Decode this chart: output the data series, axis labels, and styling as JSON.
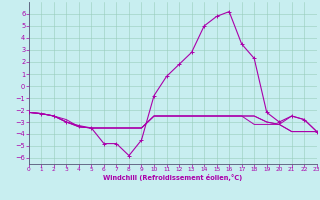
{
  "xlabel": "Windchill (Refroidissement éolien,°C)",
  "xlim": [
    0,
    23
  ],
  "ylim": [
    -6.5,
    7
  ],
  "yticks": [
    -6,
    -5,
    -4,
    -3,
    -2,
    -1,
    0,
    1,
    2,
    3,
    4,
    5,
    6
  ],
  "xticks": [
    0,
    1,
    2,
    3,
    4,
    5,
    6,
    7,
    8,
    9,
    10,
    11,
    12,
    13,
    14,
    15,
    16,
    17,
    18,
    19,
    20,
    21,
    22,
    23
  ],
  "bg_color": "#c8eef0",
  "line_color": "#aa00aa",
  "grid_color": "#99ccbb",
  "lines": [
    {
      "x": [
        0,
        1,
        2,
        3,
        4,
        5,
        6,
        7,
        8,
        9,
        10,
        11,
        12,
        13,
        14,
        15,
        16,
        17,
        18,
        19,
        20,
        21,
        22,
        23
      ],
      "y": [
        -2.2,
        -2.3,
        -2.5,
        -3.0,
        -3.3,
        -3.5,
        -4.8,
        -4.8,
        -5.8,
        -4.5,
        -0.8,
        0.8,
        1.8,
        2.8,
        5.0,
        5.8,
        6.2,
        3.5,
        2.3,
        -2.2,
        -3.0,
        -2.5,
        -2.8,
        -3.8
      ],
      "marker": true
    },
    {
      "x": [
        0,
        1,
        2,
        3,
        4,
        5,
        6,
        7,
        8,
        9,
        10,
        11,
        12,
        13,
        14,
        15,
        16,
        17,
        18,
        19,
        20,
        21,
        22,
        23
      ],
      "y": [
        -2.2,
        -2.3,
        -2.5,
        -2.8,
        -3.4,
        -3.5,
        -3.5,
        -3.5,
        -3.5,
        -3.5,
        -2.5,
        -2.5,
        -2.5,
        -2.5,
        -2.5,
        -2.5,
        -2.5,
        -2.5,
        -2.5,
        -3.0,
        -3.2,
        -3.8,
        -3.8,
        -3.8
      ],
      "marker": false
    },
    {
      "x": [
        0,
        1,
        2,
        3,
        4,
        5,
        6,
        7,
        8,
        9,
        10,
        11,
        12,
        13,
        14,
        15,
        16,
        17,
        18,
        19,
        20,
        21,
        22,
        23
      ],
      "y": [
        -2.2,
        -2.3,
        -2.5,
        -3.0,
        -3.4,
        -3.5,
        -3.5,
        -3.5,
        -3.5,
        -3.5,
        -2.5,
        -2.5,
        -2.5,
        -2.5,
        -2.5,
        -2.5,
        -2.5,
        -2.5,
        -2.5,
        -3.0,
        -3.2,
        -2.5,
        -2.8,
        -3.8
      ],
      "marker": false
    },
    {
      "x": [
        0,
        1,
        2,
        3,
        4,
        5,
        6,
        7,
        8,
        9,
        10,
        11,
        12,
        13,
        14,
        15,
        16,
        17,
        18,
        19,
        20,
        21,
        22,
        23
      ],
      "y": [
        -2.2,
        -2.3,
        -2.5,
        -3.0,
        -3.4,
        -3.5,
        -3.5,
        -3.5,
        -3.5,
        -3.5,
        -2.5,
        -2.5,
        -2.5,
        -2.5,
        -2.5,
        -2.5,
        -2.5,
        -2.5,
        -3.2,
        -3.2,
        -3.2,
        -3.8,
        -3.8,
        -3.8
      ],
      "marker": false
    }
  ]
}
